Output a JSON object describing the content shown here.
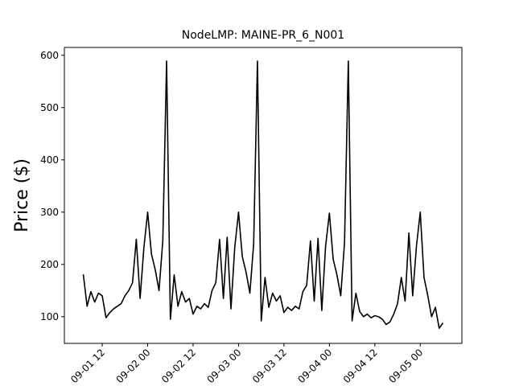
{
  "chart_data": {
    "type": "line",
    "title": "NodeLMP: MAINE-PR_6_N001",
    "y_label": "Price ($)",
    "x": [
      "09-01 07",
      "09-01 08",
      "09-01 09",
      "09-01 10",
      "09-01 11",
      "09-01 12",
      "09-01 13",
      "09-01 14",
      "09-01 15",
      "09-01 16",
      "09-01 17",
      "09-01 18",
      "09-01 19",
      "09-01 20",
      "09-01 21",
      "09-01 22",
      "09-01 23",
      "09-02 00",
      "09-02 01",
      "09-02 02",
      "09-02 03",
      "09-02 04",
      "09-02 05",
      "09-02 06",
      "09-02 07",
      "09-02 08",
      "09-02 09",
      "09-02 10",
      "09-02 11",
      "09-02 12",
      "09-02 13",
      "09-02 14",
      "09-02 15",
      "09-02 16",
      "09-02 17",
      "09-02 18",
      "09-02 19",
      "09-02 20",
      "09-02 21",
      "09-02 22",
      "09-02 23",
      "09-03 00",
      "09-03 01",
      "09-03 02",
      "09-03 03",
      "09-03 04",
      "09-03 05",
      "09-03 06",
      "09-03 07",
      "09-03 08",
      "09-03 09",
      "09-03 10",
      "09-03 11",
      "09-03 12",
      "09-03 13",
      "09-03 14",
      "09-03 15",
      "09-03 16",
      "09-03 17",
      "09-03 18",
      "09-03 19",
      "09-03 20",
      "09-03 21",
      "09-03 22",
      "09-03 23",
      "09-04 00",
      "09-04 01",
      "09-04 02",
      "09-04 03",
      "09-04 04",
      "09-04 05",
      "09-04 06",
      "09-04 07",
      "09-04 08",
      "09-04 09",
      "09-04 10",
      "09-04 11",
      "09-04 12",
      "09-04 13",
      "09-04 14",
      "09-04 15",
      "09-04 16",
      "09-04 17",
      "09-04 18",
      "09-04 19",
      "09-04 20",
      "09-04 21",
      "09-04 22",
      "09-04 23",
      "09-05 00",
      "09-05 01",
      "09-05 02",
      "09-05 03",
      "09-05 04",
      "09-05 05",
      "09-05 06"
    ],
    "series": [
      {
        "name": "Price",
        "color": "#000000",
        "values": [
          181,
          120,
          148,
          128,
          145,
          140,
          98,
          108,
          115,
          120,
          125,
          140,
          150,
          165,
          248,
          135,
          232,
          300,
          220,
          190,
          150,
          245,
          589,
          95,
          180,
          120,
          148,
          128,
          135,
          105,
          120,
          115,
          125,
          118,
          150,
          165,
          248,
          135,
          252,
          115,
          232,
          300,
          215,
          185,
          145,
          240,
          589,
          92,
          175,
          118,
          145,
          130,
          140,
          108,
          118,
          112,
          120,
          115,
          148,
          160,
          245,
          130,
          250,
          112,
          235,
          298,
          210,
          180,
          140,
          242,
          589,
          92,
          145,
          110,
          100,
          105,
          98,
          102,
          100,
          95,
          85,
          90,
          105,
          125,
          175,
          130,
          260,
          140,
          235,
          300,
          175,
          140,
          100,
          118,
          78,
          88
        ]
      }
    ],
    "xlim": [
      "09-01 02",
      "09-05 11"
    ],
    "xticks": [
      "09-01 12",
      "09-02 00",
      "09-02 12",
      "09-03 00",
      "09-03 12",
      "09-04 00",
      "09-04 12",
      "09-05 00"
    ],
    "ylim": [
      49,
      615
    ],
    "yticks": [
      100,
      200,
      300,
      400,
      500,
      600
    ],
    "grid": false
  }
}
